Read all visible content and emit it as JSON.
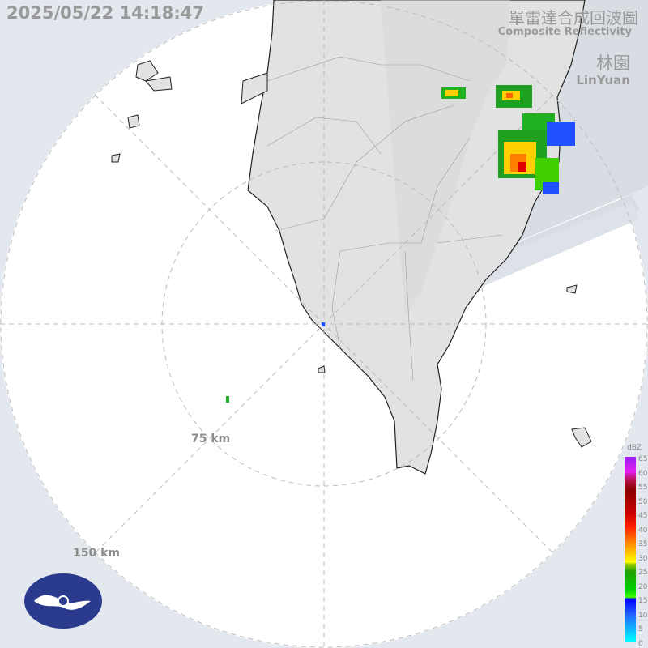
{
  "header": {
    "timestamp": "2025/05/22 14:18:47",
    "title_zh": "單雷達合成回波圖",
    "title_en": "Composite Reflectivity",
    "station_zh": "林園",
    "station_en": "LinYuan"
  },
  "range_rings": {
    "inner": "75 km",
    "outer": "150 km"
  },
  "legend": {
    "unit": "dBZ",
    "ticks": [
      "65",
      "60",
      "55",
      "50",
      "45",
      "40",
      "35",
      "30",
      "25",
      "20",
      "15",
      "10",
      "5",
      "0"
    ]
  },
  "colors": {
    "background": "#e3e8ee",
    "radar_area": "#ffffff",
    "land": "#e2e2e2",
    "blocked_sector": "#d4d9df",
    "logo": "#2a3a8c"
  },
  "logo": {
    "icon": "cwa-logo"
  }
}
